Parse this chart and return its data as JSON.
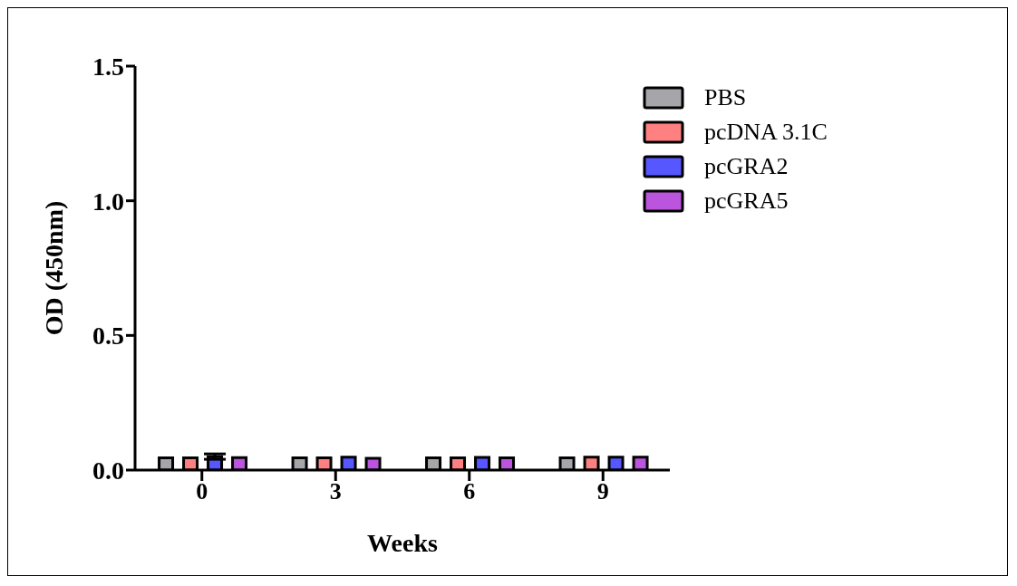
{
  "chart_data": {
    "type": "bar",
    "xlabel": "Weeks",
    "ylabel": "OD (450nm)",
    "categories": [
      "0",
      "3",
      "6",
      "9"
    ],
    "series": [
      {
        "name": "PBS",
        "color": "#a6a6aa",
        "values": [
          0.045,
          0.045,
          0.045,
          0.045
        ]
      },
      {
        "name": "pcDNA 3.1C",
        "color": "#ff8080",
        "values": [
          0.045,
          0.045,
          0.045,
          0.048
        ]
      },
      {
        "name": "pcGRA2",
        "color": "#5757ff",
        "values": [
          0.05,
          0.048,
          0.047,
          0.048
        ],
        "errors": [
          0.01,
          null,
          null,
          null
        ]
      },
      {
        "name": "pcGRA5",
        "color": "#bb55dd",
        "values": [
          0.046,
          0.044,
          0.045,
          0.048
        ]
      }
    ],
    "ylim": [
      0,
      1.5
    ],
    "yticks": [
      {
        "value": 0,
        "label": "0.0"
      },
      {
        "value": 0.5,
        "label": "0.5"
      },
      {
        "value": 1,
        "label": "1.0"
      },
      {
        "value": 1.5,
        "label": "1.5"
      }
    ],
    "legend": "top right"
  }
}
